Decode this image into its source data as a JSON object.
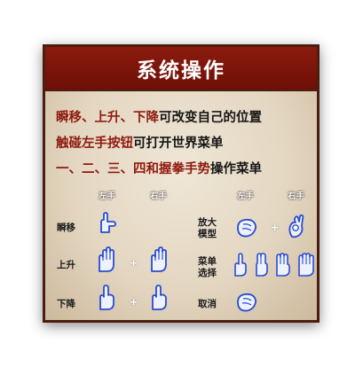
{
  "panel": {
    "title": "系统操作",
    "lines": [
      {
        "highlight": "瞬移、上升、下降",
        "rest": "可改变自己的位置"
      },
      {
        "highlight": "触碰左手按钮",
        "rest": "可打开世界菜单"
      },
      {
        "highlight": "一、二、三、四和握拳手势",
        "rest": "操作菜单"
      }
    ]
  },
  "table": {
    "left_hand": "左手",
    "right_hand": "右手",
    "plus": "+",
    "rows_left": [
      {
        "label": "瞬移",
        "gesture": "finger-gun-icon"
      },
      {
        "label": "上升",
        "gesture": "open-palm-icon"
      },
      {
        "label": "下降",
        "gesture": "pointing-down-icon"
      }
    ],
    "rows_right": [
      {
        "label": "放大\n模型",
        "gesture": "fist-icon"
      },
      {
        "label": "菜单\n选择",
        "gesture": "counting-fingers-icon"
      },
      {
        "label": "取消",
        "gesture": "fist-icon"
      }
    ]
  },
  "colors": {
    "accent": "#8f1a10",
    "header": "#7d150b",
    "hand_fill": "#eef2ff",
    "hand_stroke": "#2b4bd1"
  }
}
